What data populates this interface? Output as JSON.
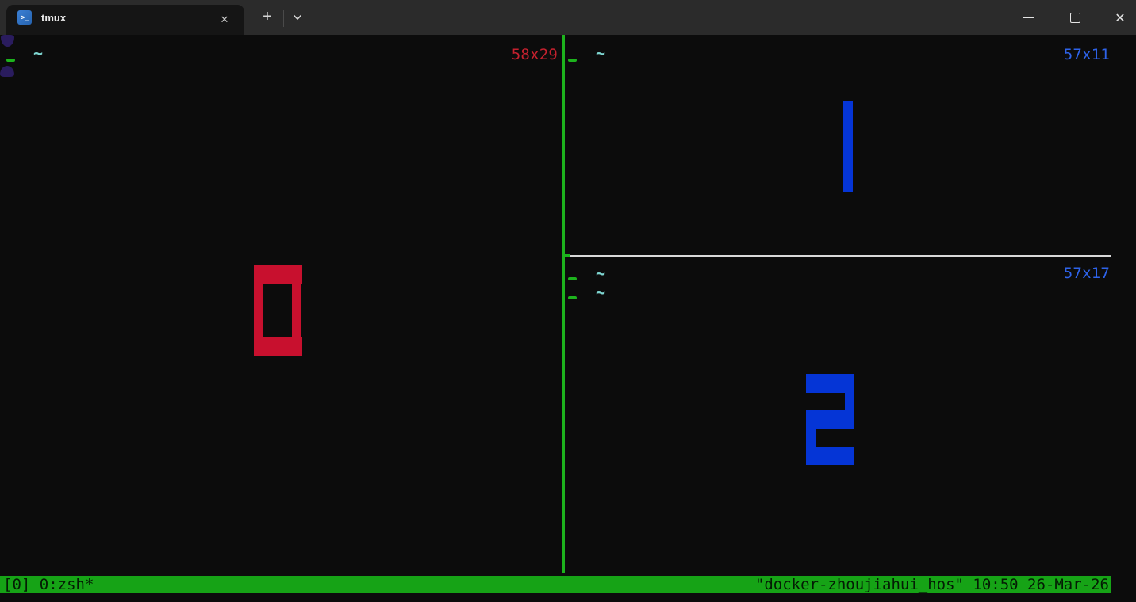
{
  "colors": {
    "titlebar_bg": "#2b2b2b",
    "tab_bg": "#151515",
    "terminal_bg": "#0c0c0c",
    "red_digit": "#c8102e",
    "red_text": "#c5212e",
    "blue_digit": "#0535d6",
    "blue_text": "#2e63ea",
    "green": "#1db31d",
    "cyan": "#7fd7d2",
    "purple": "#2a1c5e",
    "divider_gray": "#d9d9d9",
    "status_green": "#16a316"
  },
  "title_bar": {
    "tab_title": "tmux",
    "tab_icon": "powershell",
    "tab_close_icon": "✕",
    "new_tab_icon": "+",
    "dropdown_icon": "chevron-down",
    "minimize_icon": "minimize",
    "maximize_icon": "maximize",
    "close_icon": "✕",
    "ps_icon_glyph": ">_"
  },
  "terminal": {
    "prompt_tilde": "~",
    "panes": [
      {
        "index": "0",
        "size_label": "58x29",
        "digit": "0",
        "color_key": "red_digit"
      },
      {
        "index": "1",
        "size_label": "57x11",
        "digit": "1",
        "color_key": "blue_digit"
      },
      {
        "index": "2",
        "size_label": "57x17",
        "digit": "2",
        "color_key": "blue_digit"
      }
    ],
    "status_bar": {
      "left": "[0] 0:zsh*",
      "right": "\"docker-zhoujiahui_hos\" 10:50 26-Mar-26"
    }
  }
}
